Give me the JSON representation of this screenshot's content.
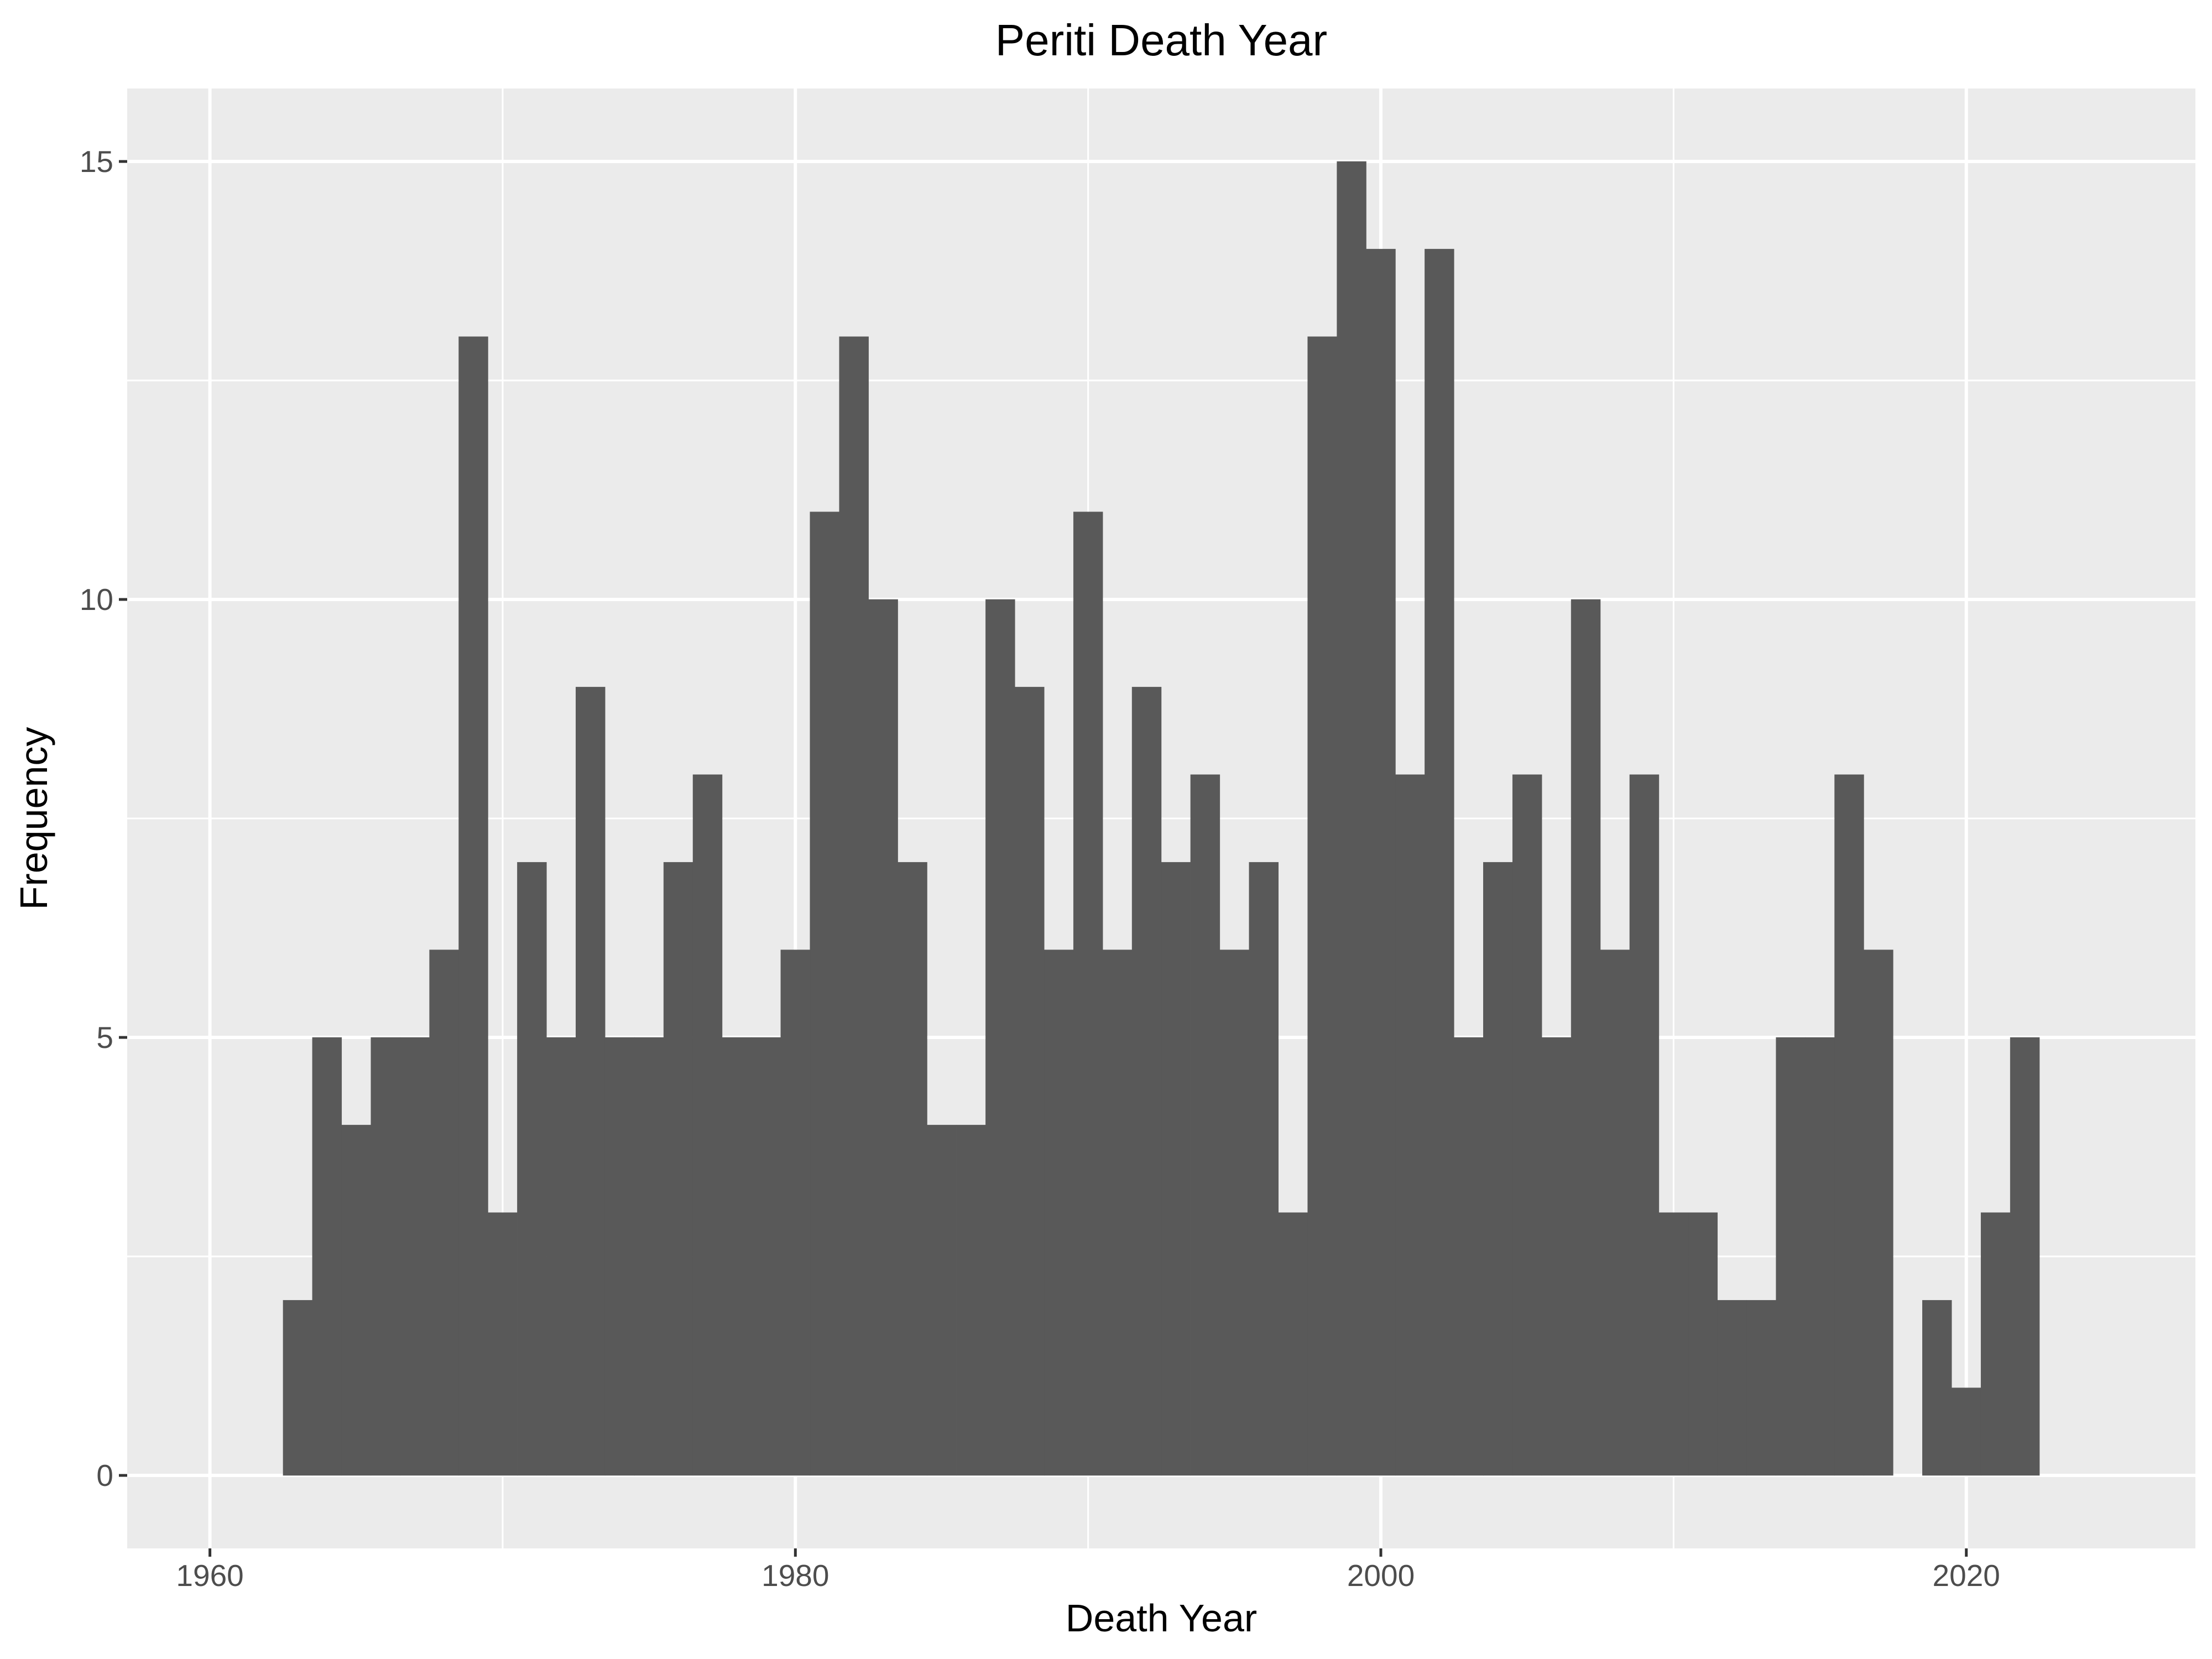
{
  "chart_data": {
    "type": "bar",
    "title": "Periti Death Year",
    "xlabel": "Death Year",
    "ylabel": "Frequency",
    "xlim": [
      1960,
      2025
    ],
    "ylim": [
      0,
      15
    ],
    "x_ticks": [
      "1960",
      "1980",
      "2000",
      "2020"
    ],
    "y_ticks": [
      "0",
      "5",
      "10",
      "15"
    ],
    "grid": true,
    "bin_width": 1,
    "series": [
      {
        "x": [
          1963,
          1964,
          1965,
          1966,
          1967,
          1968,
          1969,
          1970,
          1971,
          1972,
          1973,
          1974,
          1975,
          1976,
          1977,
          1978,
          1979,
          1980,
          1981,
          1982,
          1983,
          1984,
          1985,
          1986,
          1987,
          1988,
          1989,
          1990,
          1991,
          1992,
          1993,
          1994,
          1995,
          1996,
          1997,
          1998,
          1999,
          2000,
          2001,
          2002,
          2003,
          2004,
          2005,
          2006,
          2007,
          2008,
          2009,
          2010,
          2011,
          2012,
          2013,
          2014,
          2015,
          2016,
          2017,
          2018,
          2019,
          2020,
          2021,
          2022
        ],
        "values": [
          2,
          5,
          4,
          5,
          5,
          6,
          13,
          3,
          7,
          5,
          9,
          5,
          5,
          7,
          8,
          5,
          5,
          6,
          11,
          13,
          10,
          7,
          4,
          4,
          10,
          9,
          6,
          11,
          6,
          9,
          7,
          8,
          6,
          7,
          3,
          13,
          15,
          14,
          8,
          14,
          5,
          7,
          8,
          5,
          10,
          6,
          8,
          3,
          3,
          2,
          2,
          5,
          5,
          8,
          6,
          0,
          2,
          1,
          3,
          5
        ]
      }
    ],
    "colors": {
      "panel_background": "#ebebeb",
      "grid_major": "#ffffff",
      "bar_fill": "#595959",
      "tick_text": "#4d4d4d"
    }
  }
}
